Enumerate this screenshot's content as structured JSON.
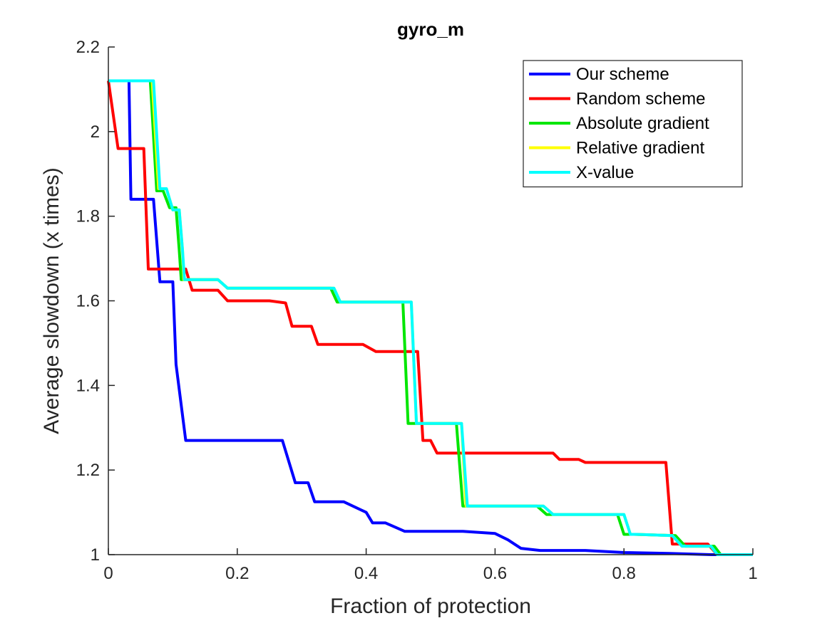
{
  "chart_data": {
    "type": "line",
    "title": "gyro_m",
    "xlabel": "Fraction of protection",
    "ylabel": "Average slowdown (x times)",
    "xlim": [
      0,
      1
    ],
    "ylim": [
      1,
      2.2
    ],
    "xticks": [
      "0",
      "0.2",
      "0.4",
      "0.6",
      "0.8",
      "1"
    ],
    "yticks": [
      "1",
      "1.2",
      "1.4",
      "1.6",
      "1.8",
      "2",
      "2.2"
    ],
    "grid": false,
    "legend_position": "top-right",
    "series": [
      {
        "name": "Our scheme",
        "color": "#0000ff",
        "points": [
          [
            0,
            2.12
          ],
          [
            0.032,
            2.12
          ],
          [
            0.035,
            1.84
          ],
          [
            0.07,
            1.84
          ],
          [
            0.08,
            1.645
          ],
          [
            0.1,
            1.645
          ],
          [
            0.105,
            1.45
          ],
          [
            0.12,
            1.27
          ],
          [
            0.27,
            1.27
          ],
          [
            0.29,
            1.17
          ],
          [
            0.31,
            1.17
          ],
          [
            0.32,
            1.125
          ],
          [
            0.365,
            1.125
          ],
          [
            0.4,
            1.1
          ],
          [
            0.41,
            1.075
          ],
          [
            0.43,
            1.075
          ],
          [
            0.46,
            1.055
          ],
          [
            0.55,
            1.055
          ],
          [
            0.6,
            1.05
          ],
          [
            0.62,
            1.035
          ],
          [
            0.64,
            1.015
          ],
          [
            0.67,
            1.01
          ],
          [
            0.74,
            1.01
          ],
          [
            0.8,
            1.005
          ],
          [
            0.87,
            1.003
          ],
          [
            0.935,
            1.0
          ],
          [
            1.0,
            1.0
          ]
        ]
      },
      {
        "name": "Random scheme",
        "color": "#ff0000",
        "points": [
          [
            0,
            2.12
          ],
          [
            0.015,
            1.96
          ],
          [
            0.055,
            1.96
          ],
          [
            0.062,
            1.675
          ],
          [
            0.12,
            1.675
          ],
          [
            0.13,
            1.625
          ],
          [
            0.17,
            1.625
          ],
          [
            0.185,
            1.6
          ],
          [
            0.25,
            1.6
          ],
          [
            0.275,
            1.595
          ],
          [
            0.285,
            1.54
          ],
          [
            0.315,
            1.54
          ],
          [
            0.325,
            1.497
          ],
          [
            0.395,
            1.497
          ],
          [
            0.415,
            1.48
          ],
          [
            0.48,
            1.48
          ],
          [
            0.488,
            1.27
          ],
          [
            0.5,
            1.27
          ],
          [
            0.51,
            1.24
          ],
          [
            0.69,
            1.24
          ],
          [
            0.7,
            1.225
          ],
          [
            0.73,
            1.225
          ],
          [
            0.74,
            1.218
          ],
          [
            0.865,
            1.218
          ],
          [
            0.875,
            1.025
          ],
          [
            0.93,
            1.025
          ],
          [
            0.945,
            1.0
          ],
          [
            1.0,
            1.0
          ]
        ]
      },
      {
        "name": "Absolute gradient",
        "color": "#00e600",
        "points": [
          [
            0,
            2.12
          ],
          [
            0.065,
            2.12
          ],
          [
            0.075,
            1.86
          ],
          [
            0.085,
            1.86
          ],
          [
            0.095,
            1.82
          ],
          [
            0.105,
            1.82
          ],
          [
            0.11,
            1.72
          ],
          [
            0.113,
            1.65
          ],
          [
            0.17,
            1.65
          ],
          [
            0.185,
            1.63
          ],
          [
            0.345,
            1.63
          ],
          [
            0.355,
            1.597
          ],
          [
            0.457,
            1.597
          ],
          [
            0.465,
            1.31
          ],
          [
            0.54,
            1.31
          ],
          [
            0.55,
            1.115
          ],
          [
            0.665,
            1.115
          ],
          [
            0.68,
            1.095
          ],
          [
            0.79,
            1.095
          ],
          [
            0.8,
            1.048
          ],
          [
            0.815,
            1.048
          ],
          [
            0.88,
            1.045
          ],
          [
            0.895,
            1.02
          ],
          [
            0.94,
            1.02
          ],
          [
            0.95,
            1.0
          ],
          [
            1.0,
            1.0
          ]
        ]
      },
      {
        "name": "Relative gradient",
        "color": "#ffff00",
        "points": [
          [
            0,
            2.12
          ],
          [
            0.068,
            2.12
          ],
          [
            0.078,
            1.865
          ],
          [
            0.09,
            1.865
          ],
          [
            0.1,
            1.815
          ],
          [
            0.11,
            1.815
          ],
          [
            0.115,
            1.72
          ],
          [
            0.117,
            1.65
          ],
          [
            0.17,
            1.65
          ],
          [
            0.185,
            1.63
          ],
          [
            0.35,
            1.63
          ],
          [
            0.36,
            1.597
          ],
          [
            0.47,
            1.597
          ],
          [
            0.478,
            1.31
          ],
          [
            0.548,
            1.31
          ],
          [
            0.555,
            1.115
          ],
          [
            0.675,
            1.115
          ],
          [
            0.69,
            1.095
          ],
          [
            0.8,
            1.095
          ],
          [
            0.81,
            1.048
          ],
          [
            0.82,
            1.048
          ],
          [
            0.875,
            1.045
          ],
          [
            0.89,
            1.02
          ],
          [
            0.935,
            1.02
          ],
          [
            0.945,
            1.0
          ],
          [
            1.0,
            1.0
          ]
        ]
      },
      {
        "name": "X-value",
        "color": "#00ffff",
        "points": [
          [
            0,
            2.12
          ],
          [
            0.07,
            2.12
          ],
          [
            0.08,
            1.865
          ],
          [
            0.09,
            1.865
          ],
          [
            0.1,
            1.815
          ],
          [
            0.11,
            1.815
          ],
          [
            0.115,
            1.72
          ],
          [
            0.118,
            1.65
          ],
          [
            0.17,
            1.65
          ],
          [
            0.185,
            1.63
          ],
          [
            0.35,
            1.63
          ],
          [
            0.36,
            1.597
          ],
          [
            0.47,
            1.597
          ],
          [
            0.478,
            1.31
          ],
          [
            0.548,
            1.31
          ],
          [
            0.557,
            1.115
          ],
          [
            0.675,
            1.115
          ],
          [
            0.69,
            1.095
          ],
          [
            0.8,
            1.095
          ],
          [
            0.81,
            1.048
          ],
          [
            0.82,
            1.048
          ],
          [
            0.875,
            1.045
          ],
          [
            0.89,
            1.02
          ],
          [
            0.935,
            1.02
          ],
          [
            0.945,
            1.0
          ],
          [
            1.0,
            1.0
          ]
        ]
      }
    ]
  }
}
